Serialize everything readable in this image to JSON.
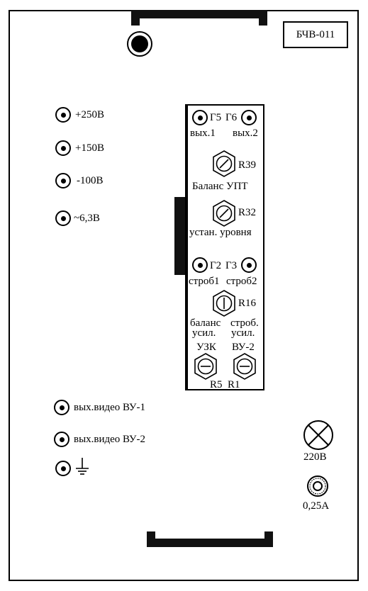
{
  "model_label": "БЧВ-011",
  "power_outputs": [
    {
      "label": "+250В"
    },
    {
      "label": "+150В"
    },
    {
      "label": "-100В"
    },
    {
      "label": "~6,3В"
    }
  ],
  "video_outputs": [
    {
      "label": "вых.видео ВУ-1"
    },
    {
      "label": "вых.видео ВУ-2"
    }
  ],
  "ground_icon": "ground-icon",
  "panel": {
    "g5": "Г5",
    "g6": "Г6",
    "out1": "вых.1",
    "out2": "вых.2",
    "r39": "R39",
    "r39_label": "Баланс УПТ",
    "r32": "R32",
    "r32_label": "устан. уровня",
    "g2": "Г2",
    "g3": "Г3",
    "strob1": "строб1",
    "strob2": "строб2",
    "r16": "R16",
    "balans": "баланс",
    "strob": "строб.",
    "usil1": "усил.",
    "usil2": "усил.",
    "uzk": "УЗК",
    "vu2": "ВУ-2",
    "r5": "R5",
    "r1": "R1"
  },
  "lamp_label": "220В",
  "fuse_label": "0,25А"
}
